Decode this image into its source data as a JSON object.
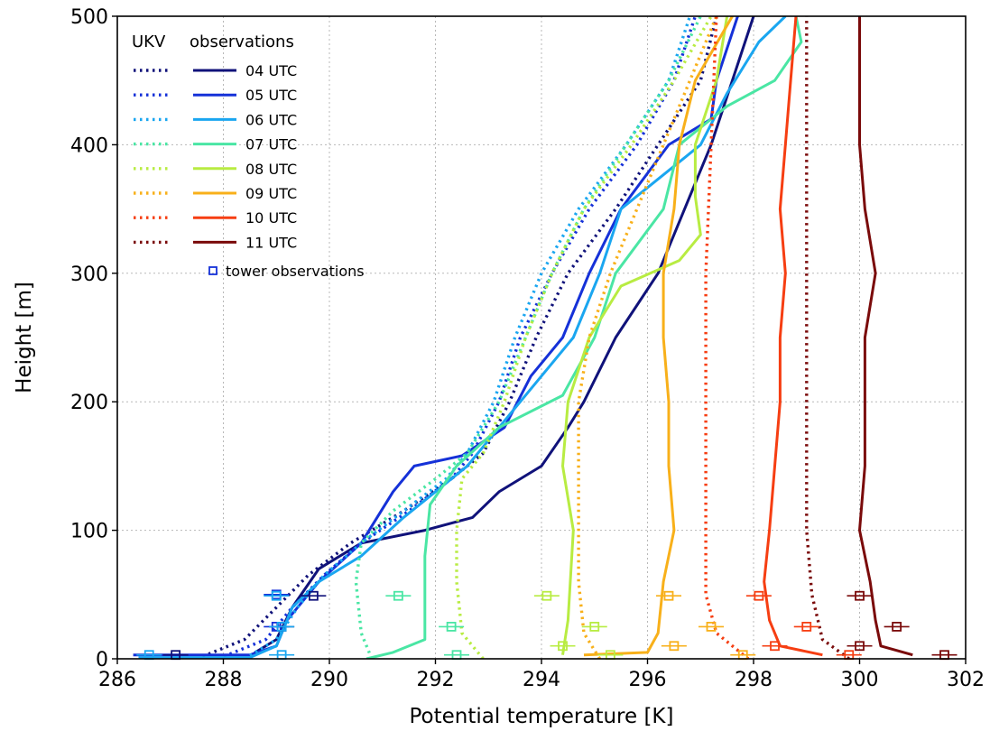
{
  "chart_data": {
    "type": "line",
    "xlabel": "Potential temperature [K]",
    "ylabel": "Height [m]",
    "xlim": [
      286,
      302
    ],
    "ylim": [
      0,
      500
    ],
    "xticks": [
      "286",
      "288",
      "290",
      "292",
      "294",
      "296",
      "298",
      "300",
      "302"
    ],
    "yticks": [
      "0",
      "100",
      "200",
      "300",
      "400",
      "500"
    ],
    "grid": true,
    "legend": {
      "placement": "top-left",
      "model_header": "UKV",
      "obs_header": "observations",
      "tower_label": "tower observations"
    },
    "series": [
      {
        "name": "04 UTC",
        "color": "#10127a",
        "ukv": [
          [
            287.5,
            0
          ],
          [
            288.4,
            15
          ],
          [
            289.0,
            40
          ],
          [
            289.6,
            65
          ],
          [
            290.4,
            90
          ],
          [
            291.4,
            115
          ],
          [
            292.3,
            140
          ],
          [
            292.9,
            160
          ],
          [
            293.4,
            200
          ],
          [
            293.9,
            250
          ],
          [
            294.5,
            300
          ],
          [
            295.4,
            350
          ],
          [
            296.2,
            400
          ],
          [
            297.0,
            450
          ],
          [
            297.3,
            500
          ]
        ],
        "obs": [
          [
            288.5,
            0
          ],
          [
            288.6,
            5
          ],
          [
            289.0,
            15
          ],
          [
            289.3,
            40
          ],
          [
            289.8,
            70
          ],
          [
            290.6,
            90
          ],
          [
            291.8,
            100
          ],
          [
            292.7,
            110
          ],
          [
            293.2,
            130
          ],
          [
            294.0,
            150
          ],
          [
            294.5,
            180
          ],
          [
            294.8,
            200
          ],
          [
            295.4,
            250
          ],
          [
            296.2,
            300
          ],
          [
            296.7,
            350
          ],
          [
            297.2,
            400
          ],
          [
            297.6,
            450
          ],
          [
            298.0,
            500
          ]
        ],
        "tower": [
          [
            287.1,
            3
          ],
          [
            289.1,
            25
          ],
          [
            289.7,
            49
          ]
        ]
      },
      {
        "name": "05 UTC",
        "color": "#1531d8",
        "ukv": [
          [
            287.9,
            0
          ],
          [
            288.8,
            15
          ],
          [
            289.3,
            40
          ],
          [
            289.9,
            65
          ],
          [
            290.6,
            90
          ],
          [
            291.5,
            115
          ],
          [
            292.3,
            140
          ],
          [
            292.7,
            160
          ],
          [
            293.2,
            200
          ],
          [
            293.6,
            250
          ],
          [
            294.2,
            300
          ],
          [
            294.9,
            350
          ],
          [
            295.8,
            400
          ],
          [
            296.5,
            450
          ],
          [
            296.9,
            500
          ]
        ],
        "obs": [
          [
            286.3,
            3
          ],
          [
            288.5,
            3
          ],
          [
            289.0,
            10
          ],
          [
            289.2,
            30
          ],
          [
            289.8,
            60
          ],
          [
            290.6,
            90
          ],
          [
            291.2,
            130
          ],
          [
            291.6,
            150
          ],
          [
            292.5,
            158
          ],
          [
            293.3,
            180
          ],
          [
            293.8,
            220
          ],
          [
            294.4,
            250
          ],
          [
            294.9,
            300
          ],
          [
            295.5,
            350
          ],
          [
            296.4,
            400
          ],
          [
            297.2,
            420
          ],
          [
            297.3,
            450
          ],
          [
            297.7,
            500
          ]
        ],
        "tower": [
          [
            289.0,
            25
          ],
          [
            289.0,
            50
          ]
        ]
      },
      {
        "name": "06 UTC",
        "color": "#1aa6f0",
        "ukv": [
          [
            288.4,
            0
          ],
          [
            289.0,
            15
          ],
          [
            289.4,
            40
          ],
          [
            289.9,
            65
          ],
          [
            290.6,
            90
          ],
          [
            291.4,
            115
          ],
          [
            292.2,
            140
          ],
          [
            292.6,
            160
          ],
          [
            293.1,
            200
          ],
          [
            293.5,
            250
          ],
          [
            294.0,
            300
          ],
          [
            294.7,
            350
          ],
          [
            295.6,
            400
          ],
          [
            296.4,
            450
          ],
          [
            296.8,
            500
          ]
        ],
        "obs": [
          [
            286.4,
            1
          ],
          [
            288.5,
            1
          ],
          [
            289.0,
            10
          ],
          [
            289.3,
            40
          ],
          [
            289.8,
            60
          ],
          [
            290.6,
            80
          ],
          [
            291.4,
            110
          ],
          [
            292.0,
            130
          ],
          [
            292.6,
            150
          ],
          [
            293.4,
            190
          ],
          [
            294.0,
            220
          ],
          [
            294.6,
            250
          ],
          [
            295.1,
            300
          ],
          [
            295.5,
            350
          ],
          [
            297.0,
            400
          ],
          [
            297.5,
            440
          ],
          [
            298.1,
            480
          ],
          [
            298.6,
            500
          ]
        ],
        "tower": [
          [
            286.6,
            3
          ],
          [
            289.1,
            3
          ],
          [
            289.1,
            25
          ],
          [
            289.0,
            49
          ]
        ]
      },
      {
        "name": "07 UTC",
        "color": "#4ae6a4",
        "ukv": [
          [
            290.8,
            0
          ],
          [
            290.6,
            20
          ],
          [
            290.5,
            60
          ],
          [
            290.6,
            90
          ],
          [
            291.2,
            115
          ],
          [
            292.0,
            140
          ],
          [
            292.6,
            160
          ],
          [
            293.2,
            200
          ],
          [
            293.7,
            250
          ],
          [
            294.2,
            300
          ],
          [
            294.8,
            350
          ],
          [
            295.6,
            400
          ],
          [
            296.4,
            450
          ],
          [
            297.0,
            500
          ]
        ],
        "obs": [
          [
            290.7,
            0
          ],
          [
            291.2,
            5
          ],
          [
            291.8,
            15
          ],
          [
            291.8,
            40
          ],
          [
            291.8,
            80
          ],
          [
            291.9,
            120
          ],
          [
            292.4,
            150
          ],
          [
            293.2,
            180
          ],
          [
            294.4,
            205
          ],
          [
            295.0,
            250
          ],
          [
            295.4,
            300
          ],
          [
            296.3,
            350
          ],
          [
            296.6,
            400
          ],
          [
            297.5,
            430
          ],
          [
            298.4,
            450
          ],
          [
            298.9,
            480
          ],
          [
            298.8,
            500
          ]
        ],
        "tower": [
          [
            291.3,
            49
          ],
          [
            292.3,
            25
          ],
          [
            292.4,
            3
          ]
        ]
      },
      {
        "name": "08 UTC",
        "color": "#b8ec42",
        "ukv": [
          [
            292.9,
            0
          ],
          [
            292.5,
            20
          ],
          [
            292.4,
            60
          ],
          [
            292.4,
            100
          ],
          [
            292.5,
            140
          ],
          [
            292.9,
            160
          ],
          [
            293.3,
            200
          ],
          [
            293.7,
            250
          ],
          [
            294.2,
            300
          ],
          [
            294.8,
            350
          ],
          [
            295.7,
            400
          ],
          [
            296.5,
            450
          ],
          [
            297.2,
            500
          ]
        ],
        "obs": [
          [
            294.4,
            3
          ],
          [
            294.5,
            30
          ],
          [
            294.6,
            100
          ],
          [
            294.4,
            150
          ],
          [
            294.5,
            200
          ],
          [
            294.9,
            250
          ],
          [
            295.5,
            290
          ],
          [
            296.6,
            310
          ],
          [
            297.0,
            330
          ],
          [
            296.9,
            360
          ],
          [
            296.9,
            400
          ],
          [
            297.3,
            450
          ],
          [
            297.5,
            500
          ]
        ],
        "tower": [
          [
            294.1,
            49
          ],
          [
            295.0,
            25
          ],
          [
            294.4,
            10
          ],
          [
            295.3,
            3
          ]
        ]
      },
      {
        "name": "09 UTC",
        "color": "#f8b01a",
        "ukv": [
          [
            295.1,
            0
          ],
          [
            294.8,
            20
          ],
          [
            294.7,
            60
          ],
          [
            294.7,
            100
          ],
          [
            294.7,
            150
          ],
          [
            294.7,
            200
          ],
          [
            294.9,
            250
          ],
          [
            295.3,
            300
          ],
          [
            295.8,
            350
          ],
          [
            296.3,
            400
          ],
          [
            296.8,
            450
          ],
          [
            297.3,
            500
          ]
        ],
        "obs": [
          [
            294.8,
            3
          ],
          [
            296.0,
            5
          ],
          [
            296.2,
            20
          ],
          [
            296.3,
            60
          ],
          [
            296.5,
            100
          ],
          [
            296.4,
            150
          ],
          [
            296.4,
            200
          ],
          [
            296.3,
            250
          ],
          [
            296.3,
            300
          ],
          [
            296.5,
            350
          ],
          [
            296.6,
            400
          ],
          [
            296.9,
            450
          ],
          [
            297.6,
            500
          ]
        ],
        "tower": [
          [
            296.4,
            49
          ],
          [
            297.2,
            25
          ],
          [
            296.5,
            10
          ],
          [
            297.8,
            3
          ]
        ]
      },
      {
        "name": "10 UTC",
        "color": "#f63e12",
        "ukv": [
          [
            297.9,
            0
          ],
          [
            297.3,
            20
          ],
          [
            297.1,
            50
          ],
          [
            297.1,
            100
          ],
          [
            297.1,
            200
          ],
          [
            297.1,
            300
          ],
          [
            297.2,
            400
          ],
          [
            297.3,
            500
          ]
        ],
        "obs": [
          [
            299.3,
            3
          ],
          [
            298.5,
            10
          ],
          [
            298.3,
            30
          ],
          [
            298.2,
            60
          ],
          [
            298.3,
            100
          ],
          [
            298.4,
            150
          ],
          [
            298.5,
            200
          ],
          [
            298.5,
            250
          ],
          [
            298.6,
            300
          ],
          [
            298.5,
            350
          ],
          [
            298.6,
            400
          ],
          [
            298.7,
            450
          ],
          [
            298.8,
            500
          ]
        ],
        "tower": [
          [
            298.1,
            49
          ],
          [
            299.0,
            25
          ],
          [
            298.4,
            10
          ],
          [
            299.8,
            3
          ]
        ]
      },
      {
        "name": "11 UTC",
        "color": "#7a0a0a",
        "ukv": [
          [
            299.8,
            0
          ],
          [
            299.3,
            15
          ],
          [
            299.1,
            50
          ],
          [
            299.0,
            100
          ],
          [
            299.0,
            200
          ],
          [
            299.0,
            300
          ],
          [
            299.0,
            400
          ],
          [
            299.0,
            500
          ]
        ],
        "obs": [
          [
            301.0,
            3
          ],
          [
            300.4,
            10
          ],
          [
            300.3,
            30
          ],
          [
            300.2,
            60
          ],
          [
            300.0,
            100
          ],
          [
            300.1,
            150
          ],
          [
            300.1,
            200
          ],
          [
            300.1,
            250
          ],
          [
            300.3,
            300
          ],
          [
            300.1,
            350
          ],
          [
            300.0,
            400
          ],
          [
            300.0,
            450
          ],
          [
            300.0,
            500
          ]
        ],
        "tower": [
          [
            300.0,
            49
          ],
          [
            300.7,
            25
          ],
          [
            300.0,
            10
          ],
          [
            301.6,
            3
          ]
        ]
      }
    ]
  }
}
